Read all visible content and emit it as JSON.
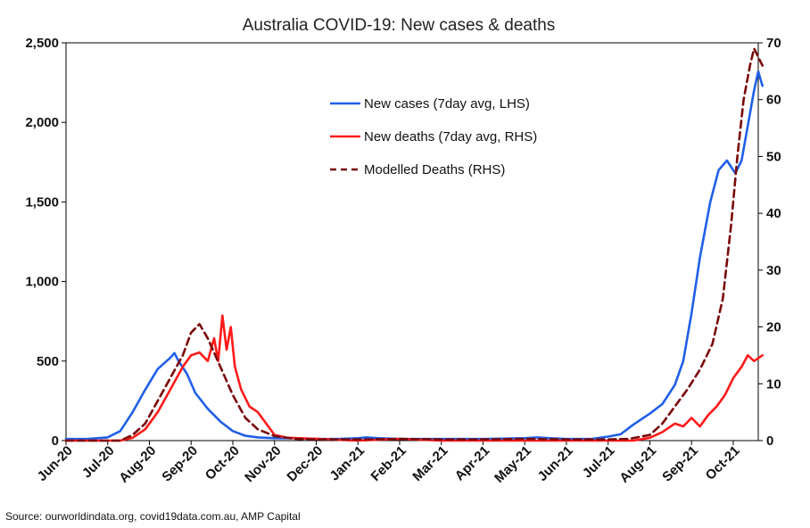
{
  "chart_data": {
    "type": "line",
    "title": "Australia COVID-19: New cases & deaths",
    "source": "Source: ourworldindata.org, covid19data.com.au, AMP Capital",
    "y_left": {
      "ticks": [
        "0",
        "500",
        "1,000",
        "1,500",
        "2,000",
        "2,500"
      ],
      "range": [
        0,
        2500
      ]
    },
    "y_right": {
      "ticks": [
        "0",
        "10",
        "20",
        "30",
        "40",
        "50",
        "60",
        "70"
      ],
      "range": [
        0,
        70
      ]
    },
    "x_ticks": [
      "Jun-20",
      "Jul-20",
      "Aug-20",
      "Sep-20",
      "Oct-20",
      "Nov-20",
      "Dec-20",
      "Jan-21",
      "Feb-21",
      "Mar-21",
      "Apr-21",
      "May-21",
      "Jun-21",
      "Jul-21",
      "Aug-21",
      "Sep-21",
      "Oct-21"
    ],
    "x_range": [
      0,
      16.6
    ],
    "grid": false,
    "legend": {
      "placement": "top-center",
      "items": [
        {
          "label": "New cases (7day avg, LHS)",
          "color": "#1f5fe8",
          "style": "solid"
        },
        {
          "label": "New deaths (7day avg, RHS)",
          "color": "#ff1a1a",
          "style": "solid"
        },
        {
          "label": "Modelled Deaths (RHS)",
          "color": "#7a0a0a",
          "style": "dashed"
        }
      ]
    },
    "series": [
      {
        "name": "New cases (7day avg, LHS)",
        "axis": "left",
        "color": "#1f5fe8",
        "style": "solid",
        "points": [
          [
            0,
            10
          ],
          [
            0.5,
            10
          ],
          [
            1,
            20
          ],
          [
            1.3,
            60
          ],
          [
            1.6,
            180
          ],
          [
            1.9,
            320
          ],
          [
            2.2,
            450
          ],
          [
            2.5,
            520
          ],
          [
            2.6,
            550
          ],
          [
            2.7,
            500
          ],
          [
            2.9,
            420
          ],
          [
            3.1,
            300
          ],
          [
            3.4,
            200
          ],
          [
            3.7,
            120
          ],
          [
            4,
            60
          ],
          [
            4.3,
            30
          ],
          [
            4.6,
            20
          ],
          [
            5,
            15
          ],
          [
            5.5,
            15
          ],
          [
            6,
            10
          ],
          [
            6.5,
            10
          ],
          [
            7,
            15
          ],
          [
            7.2,
            20
          ],
          [
            7.5,
            15
          ],
          [
            8,
            10
          ],
          [
            9,
            10
          ],
          [
            10,
            10
          ],
          [
            11,
            15
          ],
          [
            11.3,
            20
          ],
          [
            11.6,
            15
          ],
          [
            12,
            10
          ],
          [
            12.6,
            10
          ],
          [
            13,
            25
          ],
          [
            13.3,
            40
          ],
          [
            13.6,
            100
          ],
          [
            14,
            170
          ],
          [
            14.3,
            230
          ],
          [
            14.6,
            350
          ],
          [
            14.8,
            500
          ],
          [
            15,
            800
          ],
          [
            15.2,
            1150
          ],
          [
            15.45,
            1500
          ],
          [
            15.65,
            1700
          ],
          [
            15.85,
            1760
          ],
          [
            16.05,
            1680
          ],
          [
            16.2,
            1760
          ],
          [
            16.35,
            1980
          ],
          [
            16.5,
            2200
          ],
          [
            16.6,
            2320
          ],
          [
            16.7,
            2230
          ]
        ]
      },
      {
        "name": "New deaths (7day avg, RHS)",
        "axis": "right",
        "color": "#ff1a1a",
        "style": "solid",
        "points": [
          [
            0,
            0
          ],
          [
            1.3,
            0
          ],
          [
            1.6,
            0.5
          ],
          [
            1.9,
            2
          ],
          [
            2.2,
            5
          ],
          [
            2.5,
            9
          ],
          [
            2.8,
            13
          ],
          [
            3.0,
            15
          ],
          [
            3.2,
            15.5
          ],
          [
            3.4,
            14
          ],
          [
            3.55,
            18
          ],
          [
            3.65,
            14
          ],
          [
            3.75,
            22
          ],
          [
            3.85,
            16
          ],
          [
            3.95,
            20
          ],
          [
            4.05,
            13
          ],
          [
            4.2,
            9
          ],
          [
            4.4,
            6
          ],
          [
            4.6,
            5
          ],
          [
            4.8,
            3
          ],
          [
            5.0,
            1
          ],
          [
            5.3,
            0.5
          ],
          [
            6,
            0.3
          ],
          [
            7,
            0
          ],
          [
            8,
            0.3
          ],
          [
            9,
            0
          ],
          [
            10,
            0
          ],
          [
            11,
            0
          ],
          [
            12,
            0
          ],
          [
            13,
            0
          ],
          [
            13.6,
            0
          ],
          [
            14,
            0.5
          ],
          [
            14.3,
            1.5
          ],
          [
            14.6,
            3
          ],
          [
            14.8,
            2.5
          ],
          [
            15.0,
            4
          ],
          [
            15.2,
            2.5
          ],
          [
            15.4,
            4.5
          ],
          [
            15.6,
            6
          ],
          [
            15.8,
            8
          ],
          [
            16.0,
            11
          ],
          [
            16.2,
            13
          ],
          [
            16.35,
            15
          ],
          [
            16.5,
            14
          ],
          [
            16.7,
            15
          ]
        ]
      },
      {
        "name": "Modelled Deaths (RHS)",
        "axis": "right",
        "color": "#7a0a0a",
        "style": "dashed",
        "points": [
          [
            0,
            0
          ],
          [
            1.3,
            0
          ],
          [
            1.6,
            1
          ],
          [
            1.9,
            3
          ],
          [
            2.2,
            7
          ],
          [
            2.5,
            11
          ],
          [
            2.8,
            15
          ],
          [
            3.0,
            19
          ],
          [
            3.2,
            20.5
          ],
          [
            3.4,
            18
          ],
          [
            3.7,
            13
          ],
          [
            4.0,
            8
          ],
          [
            4.3,
            4
          ],
          [
            4.6,
            2
          ],
          [
            5.0,
            0.8
          ],
          [
            5.5,
            0.3
          ],
          [
            6,
            0.2
          ],
          [
            7,
            0.2
          ],
          [
            8,
            0.3
          ],
          [
            9,
            0.2
          ],
          [
            10,
            0.2
          ],
          [
            11,
            0.3
          ],
          [
            12,
            0.2
          ],
          [
            13,
            0.2
          ],
          [
            13.5,
            0.3
          ],
          [
            14.0,
            1
          ],
          [
            14.3,
            3
          ],
          [
            14.6,
            6
          ],
          [
            14.9,
            9
          ],
          [
            15.2,
            12.5
          ],
          [
            15.5,
            17
          ],
          [
            15.75,
            25
          ],
          [
            15.95,
            38
          ],
          [
            16.1,
            50
          ],
          [
            16.25,
            60
          ],
          [
            16.4,
            66
          ],
          [
            16.5,
            69
          ],
          [
            16.6,
            67.5
          ],
          [
            16.7,
            66
          ]
        ]
      }
    ]
  }
}
